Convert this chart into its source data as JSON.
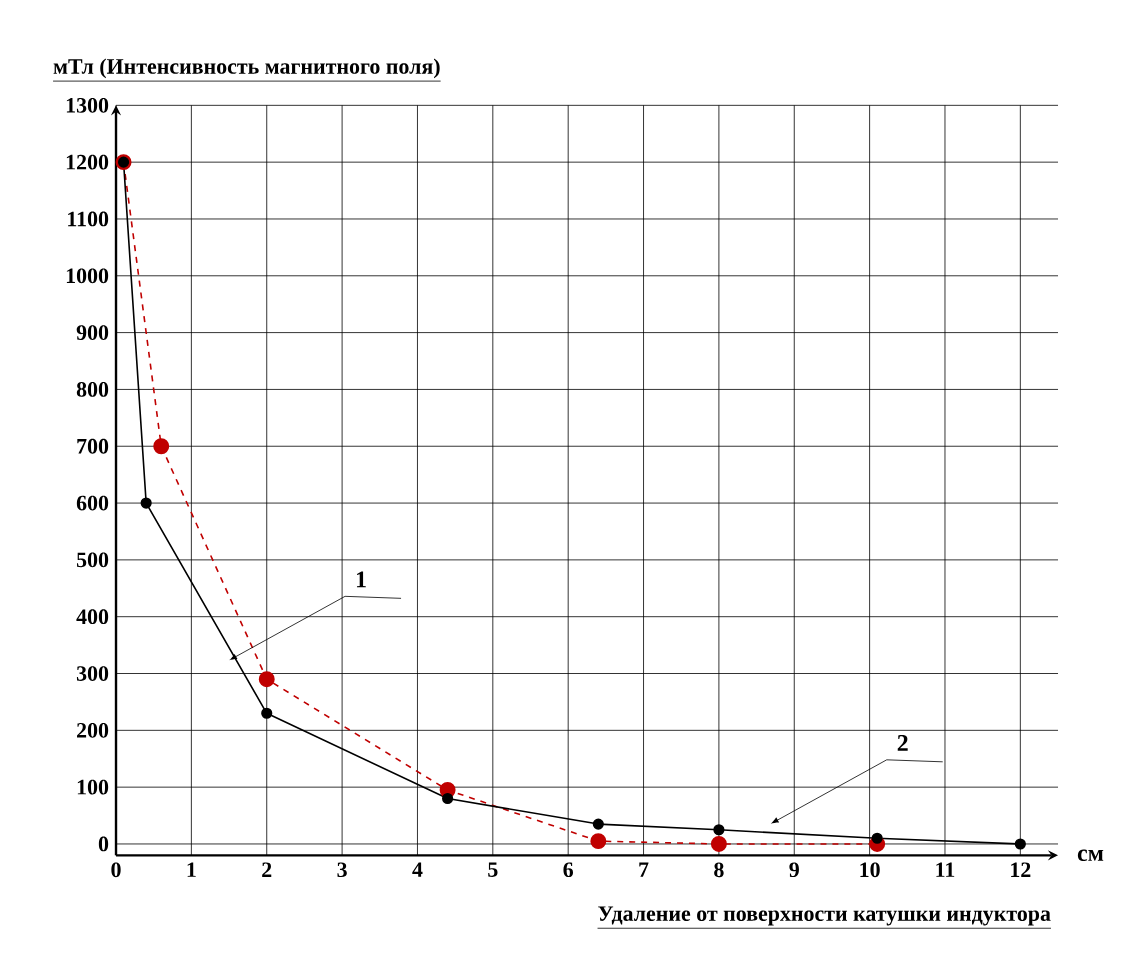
{
  "chart_data": {
    "type": "line",
    "xlabel": "Удаление от поверхности катушки индуктора",
    "ylabel": "мТл  (Интенсивность магнитного поля)",
    "annotations": [
      "1",
      "2",
      "см"
    ],
    "xlim": [
      0,
      12.5
    ],
    "ylim": [
      -20,
      1300
    ],
    "xticks": [
      0,
      1,
      2,
      3,
      4,
      5,
      6,
      7,
      8,
      9,
      10,
      11,
      12
    ],
    "yticks": [
      0,
      100,
      200,
      300,
      400,
      500,
      600,
      700,
      800,
      900,
      1000,
      1100,
      1200,
      1300
    ],
    "grid": true,
    "marker": "circle",
    "series": [
      {
        "color": "#c00000",
        "line_style": "dashed",
        "x": [
          0.1,
          0.6,
          2,
          4.4,
          6.4,
          8,
          10.1
        ],
        "values": [
          1200,
          700,
          290,
          95,
          5,
          0,
          0
        ]
      },
      {
        "color": "#000000",
        "line_style": "solid",
        "x": [
          0.1,
          0.4,
          2,
          4.4,
          6.4,
          8,
          10.1,
          12
        ],
        "values": [
          1200,
          600,
          230,
          80,
          35,
          25,
          10,
          0
        ]
      }
    ]
  }
}
